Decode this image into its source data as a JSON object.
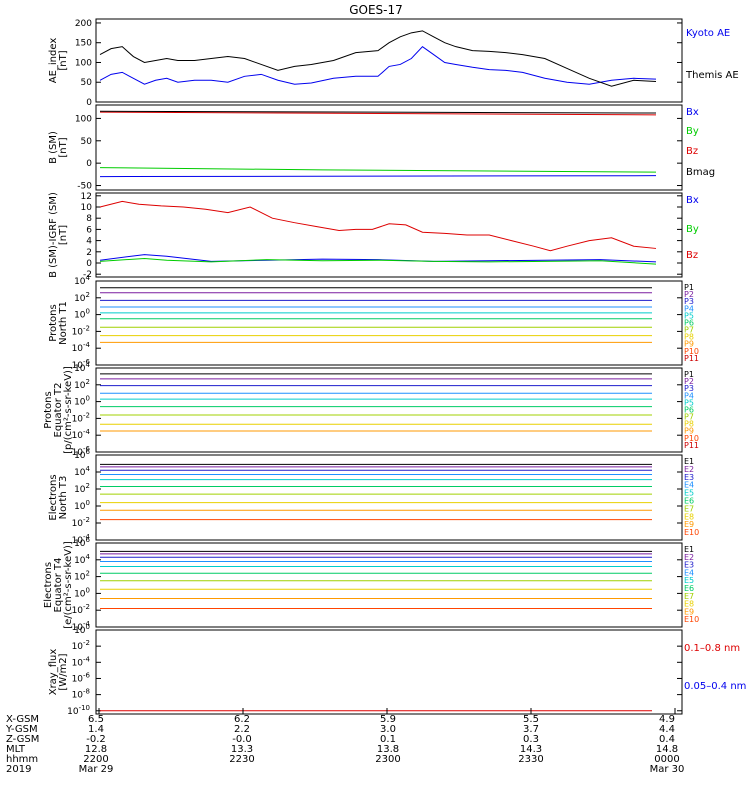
{
  "title": "GOES-17",
  "colors": {
    "black": "#000000",
    "blue": "#0000ee",
    "green": "#00cc00",
    "red": "#dd0000",
    "darkred": "#8b0000",
    "channels": [
      "#000000",
      "#7a1fa0",
      "#1d1dcc",
      "#1e90ff",
      "#00cccc",
      "#00cc66",
      "#a0d000",
      "#e8d000",
      "#ff9900",
      "#ff4400",
      "#cc0000"
    ]
  },
  "chart_data": [
    {
      "type": "line",
      "ylabel": [
        "AE_index",
        "[nT]"
      ],
      "yticks": [
        "0",
        "50",
        "100",
        "150",
        "200"
      ],
      "ylim": [
        0,
        210
      ],
      "series": [
        {
          "name": "Kyoto AE",
          "color": "#0000ee",
          "t": [
            0,
            2,
            4,
            6,
            8,
            10,
            12,
            14,
            17,
            20,
            23,
            26,
            29,
            32,
            35,
            38,
            42,
            46,
            50,
            52,
            54,
            56,
            58,
            60,
            62,
            64,
            67,
            70,
            73,
            76,
            80,
            84,
            88,
            92,
            96,
            100
          ],
          "v": [
            55,
            70,
            75,
            60,
            45,
            55,
            60,
            50,
            55,
            55,
            50,
            65,
            70,
            55,
            45,
            48,
            60,
            65,
            65,
            90,
            95,
            110,
            140,
            120,
            100,
            95,
            88,
            82,
            80,
            75,
            60,
            50,
            45,
            55,
            60,
            58
          ]
        },
        {
          "name": "Themis AE",
          "color": "#000000",
          "t": [
            0,
            2,
            4,
            6,
            8,
            10,
            12,
            14,
            17,
            20,
            23,
            26,
            29,
            32,
            35,
            38,
            42,
            46,
            50,
            52,
            54,
            56,
            58,
            60,
            62,
            64,
            67,
            70,
            73,
            76,
            80,
            84,
            88,
            92,
            96,
            100
          ],
          "v": [
            120,
            135,
            140,
            115,
            100,
            105,
            110,
            105,
            105,
            110,
            115,
            110,
            95,
            80,
            90,
            95,
            105,
            125,
            130,
            150,
            165,
            175,
            180,
            165,
            150,
            140,
            130,
            128,
            125,
            120,
            110,
            85,
            60,
            40,
            55,
            52
          ]
        }
      ],
      "legend": [
        "Kyoto AE",
        "Themis AE"
      ]
    },
    {
      "type": "line",
      "ylabel": [
        "B (SM)",
        "[nT]"
      ],
      "yticks": [
        "-50",
        "0",
        "50",
        "100"
      ],
      "ylim": [
        -60,
        130
      ],
      "series": [
        {
          "name": "Bx",
          "color": "#0000ee",
          "t": [
            0,
            100
          ],
          "v": [
            -30,
            -28
          ]
        },
        {
          "name": "By",
          "color": "#00cc00",
          "t": [
            0,
            40,
            100
          ],
          "v": [
            -10,
            -15,
            -20
          ]
        },
        {
          "name": "Bz",
          "color": "#dd0000",
          "t": [
            0,
            100
          ],
          "v": [
            114,
            108
          ]
        },
        {
          "name": "Bmag",
          "color": "#000000",
          "t": [
            0,
            100
          ],
          "v": [
            116,
            112
          ]
        }
      ],
      "legend": [
        "Bx",
        "By",
        "Bz",
        "Bmag"
      ]
    },
    {
      "type": "line",
      "ylabel": [
        "B (SM)-IGRF (SM)",
        "[nT]"
      ],
      "yticks": [
        "-2",
        "0",
        "2",
        "4",
        "6",
        "8",
        "10",
        "12"
      ],
      "ylim": [
        -2.5,
        12.5
      ],
      "series": [
        {
          "name": "Bx",
          "color": "#0000ee",
          "t": [
            0,
            8,
            12,
            20,
            30,
            40,
            50,
            60,
            70,
            80,
            90,
            100
          ],
          "v": [
            0.5,
            1.5,
            1.2,
            0.3,
            0.5,
            0.7,
            0.6,
            0.3,
            0.4,
            0.5,
            0.6,
            0.2
          ]
        },
        {
          "name": "By",
          "color": "#00cc00",
          "t": [
            0,
            8,
            12,
            20,
            30,
            40,
            50,
            60,
            70,
            80,
            90,
            100
          ],
          "v": [
            0.3,
            0.8,
            0.5,
            0.2,
            0.6,
            0.4,
            0.5,
            0.3,
            0.2,
            0.3,
            0.4,
            -0.2
          ]
        },
        {
          "name": "Bz",
          "color": "#dd0000",
          "t": [
            0,
            4,
            7,
            11,
            15,
            19,
            23,
            27,
            31,
            35,
            39,
            43,
            46,
            49,
            52,
            55,
            58,
            62,
            66,
            70,
            74,
            78,
            81,
            84,
            88,
            92,
            96,
            100
          ],
          "v": [
            10,
            11,
            10.5,
            10.2,
            10,
            9.6,
            9,
            10,
            8,
            7.2,
            6.5,
            5.8,
            6,
            6,
            7,
            6.8,
            5.5,
            5.3,
            5,
            5,
            4,
            3,
            2.2,
            3,
            4,
            4.5,
            3,
            2.6
          ]
        }
      ],
      "legend": [
        "Bx",
        "By",
        "Bz"
      ]
    },
    {
      "type": "line",
      "ylabel": [
        "Protons",
        "North T1"
      ],
      "yticks": [
        "10^-6",
        "10^-4",
        "10^-2",
        "10^0",
        "10^2",
        "10^4"
      ],
      "yexp": [
        -6,
        -4,
        -2,
        0,
        2,
        4
      ],
      "ylim": [
        -6,
        4
      ],
      "series": [
        {
          "name": "P1",
          "values_log": [
            3.2
          ]
        },
        {
          "name": "P2",
          "values_log": [
            2.6
          ]
        },
        {
          "name": "P3",
          "values_log": [
            1.7
          ]
        },
        {
          "name": "P4",
          "values_log": [
            0.9
          ]
        },
        {
          "name": "P5",
          "values_log": [
            0.2
          ]
        },
        {
          "name": "P6",
          "values_log": [
            -0.5
          ]
        },
        {
          "name": "P7",
          "values_log": [
            -1.5
          ]
        },
        {
          "name": "P8",
          "values_log": [
            -2.5
          ]
        },
        {
          "name": "P9",
          "values_log": [
            -3.3
          ]
        }
      ],
      "legend": [
        "P1",
        "P2",
        "P3",
        "P4",
        "P5",
        "P6",
        "P7",
        "P8",
        "P9",
        "P10",
        "P11"
      ]
    },
    {
      "type": "line",
      "ylabel": [
        "Protons",
        "Equator T2",
        "[p/(cm²-s-sr-keV)]"
      ],
      "yticks": [
        "10^-6",
        "10^-4",
        "10^-2",
        "10^0",
        "10^2",
        "10^4"
      ],
      "yexp": [
        -6,
        -4,
        -2,
        0,
        2,
        4
      ],
      "ylim": [
        -6,
        4
      ],
      "series": [
        {
          "name": "P1",
          "values_log": [
            3.3
          ]
        },
        {
          "name": "P2",
          "values_log": [
            2.7
          ]
        },
        {
          "name": "P3",
          "values_log": [
            1.9
          ]
        },
        {
          "name": "P4",
          "values_log": [
            1.0
          ]
        },
        {
          "name": "P5",
          "values_log": [
            0.3
          ]
        },
        {
          "name": "P6",
          "values_log": [
            -0.6
          ]
        },
        {
          "name": "P7",
          "values_log": [
            -1.6
          ]
        },
        {
          "name": "P8",
          "values_log": [
            -2.7
          ]
        },
        {
          "name": "P9",
          "values_log": [
            -3.5
          ]
        }
      ],
      "legend": [
        "P1",
        "P2",
        "P3",
        "P4",
        "P5",
        "P6",
        "P7",
        "P8",
        "P9",
        "P10",
        "P11"
      ]
    },
    {
      "type": "line",
      "ylabel": [
        "Electrons",
        "North T3"
      ],
      "yticks": [
        "10^-4",
        "10^-2",
        "10^0",
        "10^2",
        "10^4",
        "10^6"
      ],
      "yexp": [
        -4,
        -2,
        0,
        2,
        4,
        6
      ],
      "ylim": [
        -4,
        6
      ],
      "series": [
        {
          "name": "E1",
          "values_log": [
            4.9
          ]
        },
        {
          "name": "E2",
          "values_log": [
            4.6
          ]
        },
        {
          "name": "E3",
          "values_log": [
            4.2
          ]
        },
        {
          "name": "E4",
          "values_log": [
            3.7
          ]
        },
        {
          "name": "E5",
          "values_log": [
            3.1
          ]
        },
        {
          "name": "E6",
          "values_log": [
            2.3
          ]
        },
        {
          "name": "E7",
          "values_log": [
            1.4
          ]
        },
        {
          "name": "E8",
          "values_log": [
            0.4
          ]
        },
        {
          "name": "E9",
          "values_log": [
            -0.5
          ]
        },
        {
          "name": "E10",
          "values_log": [
            -1.6
          ]
        }
      ],
      "legend": [
        "E1",
        "E2",
        "E3",
        "E4",
        "E5",
        "E6",
        "E7",
        "E8",
        "E9",
        "E10"
      ]
    },
    {
      "type": "line",
      "ylabel": [
        "Electrons",
        "Equator T4",
        "[e/(cm²-s-sr-keV)]"
      ],
      "yticks": [
        "10^-4",
        "10^-2",
        "10^0",
        "10^2",
        "10^4",
        "10^6"
      ],
      "yexp": [
        -4,
        -2,
        0,
        2,
        4,
        6
      ],
      "ylim": [
        -4,
        6
      ],
      "series": [
        {
          "name": "E1",
          "values_log": [
            5.0
          ]
        },
        {
          "name": "E2",
          "values_log": [
            4.7
          ]
        },
        {
          "name": "E3",
          "values_log": [
            4.3
          ]
        },
        {
          "name": "E4",
          "values_log": [
            3.8
          ]
        },
        {
          "name": "E5",
          "values_log": [
            3.2
          ]
        },
        {
          "name": "E6",
          "values_log": [
            2.4
          ]
        },
        {
          "name": "E7",
          "values_log": [
            1.5
          ]
        },
        {
          "name": "E8",
          "values_log": [
            0.5
          ]
        },
        {
          "name": "E9",
          "values_log": [
            -0.6
          ]
        },
        {
          "name": "E10",
          "values_log": [
            -1.8
          ]
        }
      ],
      "legend": [
        "E1",
        "E2",
        "E3",
        "E4",
        "E5",
        "E6",
        "E7",
        "E8",
        "E9",
        "E10"
      ]
    },
    {
      "type": "line",
      "ylabel": [
        "Xray_flux",
        "[W/m2]"
      ],
      "yticks": [
        "10^-10",
        "10^-8",
        "10^-6",
        "10^-4",
        "10^-2",
        "10^0"
      ],
      "yexp": [
        -10,
        -8,
        -6,
        -4,
        -2,
        0
      ],
      "ylim": [
        -10.4,
        0
      ],
      "series": [
        {
          "name": "0.1-0.8 nm",
          "color": "#dd0000",
          "values_log": [
            -10
          ]
        }
      ],
      "legend": [
        "0.1–0.8 nm",
        "0.05–0.4 nm"
      ]
    }
  ],
  "footer": {
    "row_labels": [
      "X-GSM",
      "Y-GSM",
      "Z-GSM",
      "MLT",
      "hhmm",
      "2019"
    ],
    "columns": [
      {
        "values": [
          "6.5",
          "1.4",
          "-0.2",
          "12.8",
          "2200",
          "Mar 29"
        ]
      },
      {
        "values": [
          "6.2",
          "2.2",
          "-0.0",
          "13.3",
          "2230",
          ""
        ]
      },
      {
        "values": [
          "5.9",
          "3.0",
          "0.1",
          "13.8",
          "2300",
          ""
        ]
      },
      {
        "values": [
          "5.5",
          "3.7",
          "0.3",
          "14.3",
          "2330",
          ""
        ]
      },
      {
        "values": [
          "4.9",
          "4.4",
          "0.4",
          "14.8",
          "0000",
          "Mar 30"
        ]
      }
    ]
  }
}
